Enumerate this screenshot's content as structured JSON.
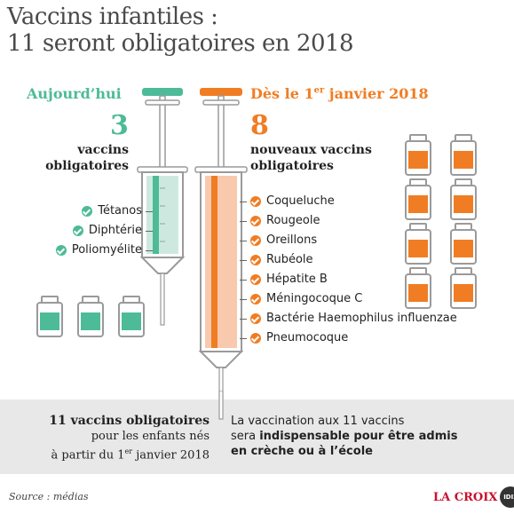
{
  "title": {
    "line1": "Vaccins infantiles :",
    "line2": "11 seront obligatoires en 2018"
  },
  "left": {
    "heading": "Aujourd’hui",
    "count": "3",
    "subtitle_line1": "vaccins",
    "subtitle_line2": "obligatoires",
    "items": [
      "Tétanos",
      "Diphtérie",
      "Poliomyélite"
    ],
    "color": "#4dbb97"
  },
  "right": {
    "heading_pre": "Dès le 1",
    "heading_sup": "er",
    "heading_post": " janvier 2018",
    "count": "8",
    "subtitle_line1": "nouveaux vaccins",
    "subtitle_line2": "obligatoires",
    "items": [
      "Coqueluche",
      "Rougeole",
      "Oreillons",
      "Rubéole",
      "Hépatite B",
      "Méningocoque C",
      "Bactérie Haemophilus influenzae",
      "Pneumocoque"
    ],
    "color": "#f07d23"
  },
  "bottom": {
    "left_bold": "11 vaccins obligatoires",
    "left_line2": "pour les enfants nés",
    "left_line3_pre": "à partir du 1",
    "left_line3_sup": "er",
    "left_line3_post": " janvier 2018",
    "right_line1": "La vaccination aux 11 vaccins",
    "right_line2_pre": "sera ",
    "right_line2_bold": "indispensable pour être admis",
    "right_line3_bold": "en crèche ou à l’école"
  },
  "footer": {
    "source": "Source : médias",
    "logo": "LA CROIX",
    "logo_badge": "IDIX"
  }
}
